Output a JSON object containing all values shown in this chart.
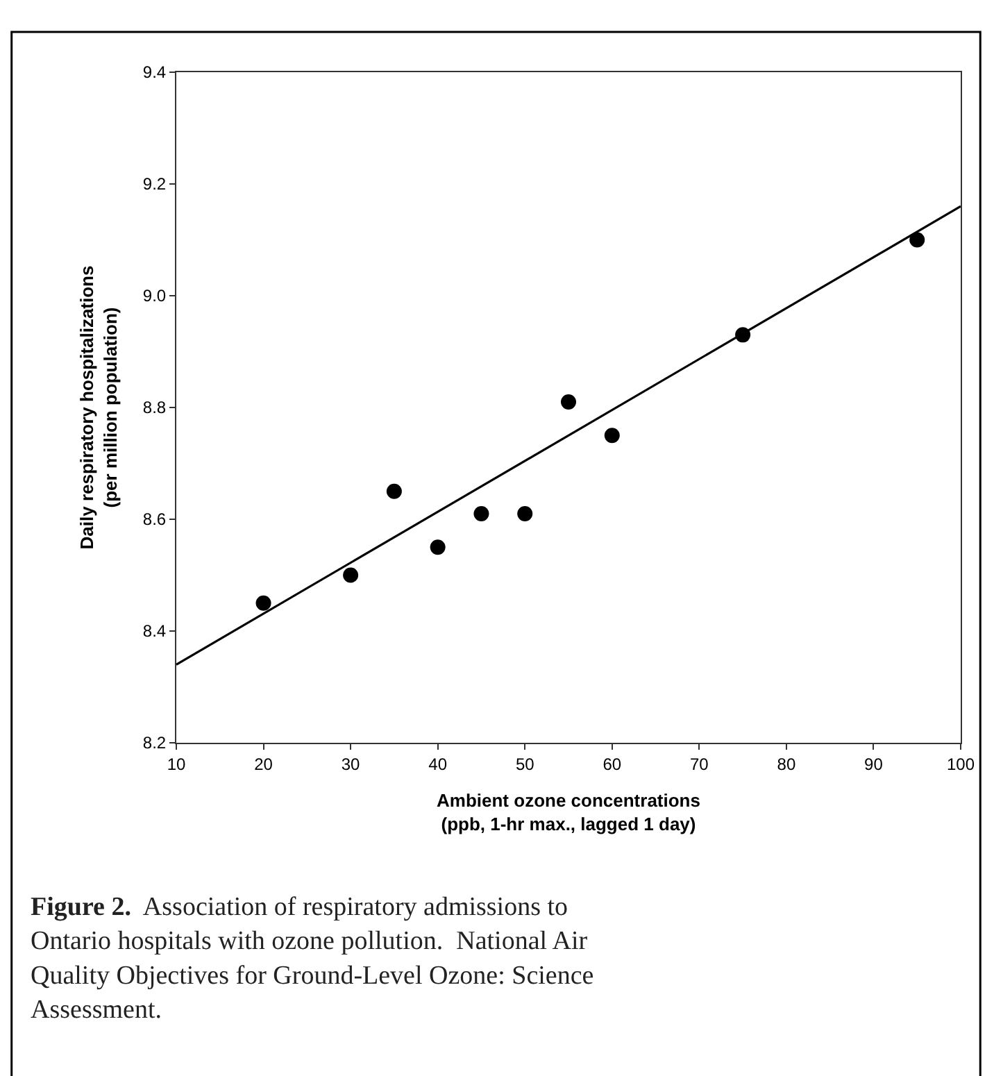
{
  "chart_data": {
    "type": "scatter",
    "xlabel": "Ambient ozone concentrations\n(ppb, 1-hr max., lagged 1 day)",
    "ylabel": "Daily respiratory hospitalizations\n(per million population)",
    "series": [
      {
        "color": "#000000",
        "marker": "circle",
        "x": [
          20,
          30,
          35,
          40,
          45,
          50,
          55,
          60,
          75,
          95
        ],
        "values": [
          8.45,
          8.5,
          8.65,
          8.55,
          8.61,
          8.61,
          8.81,
          8.75,
          8.93,
          9.1
        ]
      },
      {
        "type": "line",
        "color": "#000000",
        "marker": "none",
        "line_style": "solid",
        "x": [
          10,
          100
        ],
        "values": [
          8.34,
          9.16
        ]
      }
    ],
    "xlim": [
      10,
      100
    ],
    "xticks": [
      10,
      20,
      30,
      40,
      50,
      60,
      70,
      80,
      90,
      100
    ],
    "ylim": [
      8.2,
      9.4
    ],
    "yticks": [
      {
        "value": 8.2,
        "label": "8.2"
      },
      {
        "value": 8.4,
        "label": "8.4"
      },
      {
        "value": 8.6,
        "label": "8.6"
      },
      {
        "value": 8.8,
        "label": "8.8"
      },
      {
        "value": 9.0,
        "label": "9.0"
      },
      {
        "value": 9.2,
        "label": "9.2"
      },
      {
        "value": 9.4,
        "label": "9.4"
      }
    ],
    "annotations": [
      "Figure 2.",
      "Association of respiratory admissions to Ontario hospitals with ozone pollution.  National Air Quality Objectives for Ground-Level Ozone: Science Assessment."
    ]
  }
}
